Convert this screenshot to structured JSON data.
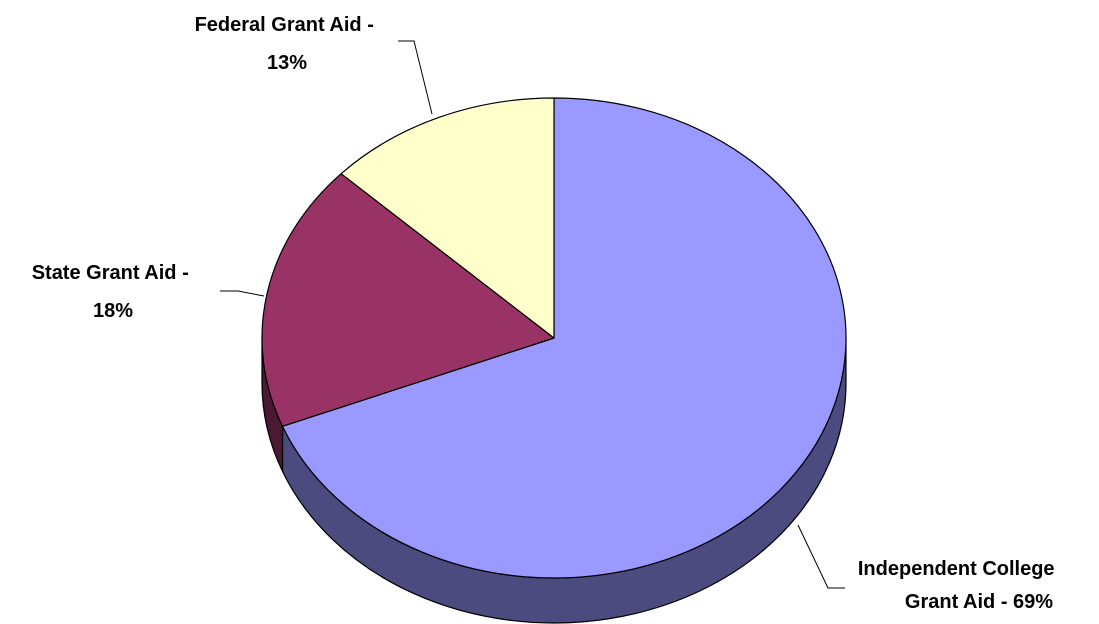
{
  "chart_data": {
    "type": "pie",
    "style": "3d",
    "slices": [
      {
        "name": "Independent College Grant Aid",
        "value": 69,
        "color": "#9999ff",
        "side_color": "#4b4b7f",
        "label_lines": [
          "Independent College",
          "Grant Aid - 69%"
        ]
      },
      {
        "name": "State Grant Aid",
        "value": 18,
        "color": "#993366",
        "side_color": "#4c1933",
        "label_lines": [
          "State Grant Aid -",
          "18%"
        ]
      },
      {
        "name": "Federal Grant Aid",
        "value": 13,
        "color": "#ffffcc",
        "side_color": "#7f7f66",
        "label_lines": [
          "Federal Grant Aid -",
          "13%"
        ]
      }
    ]
  }
}
